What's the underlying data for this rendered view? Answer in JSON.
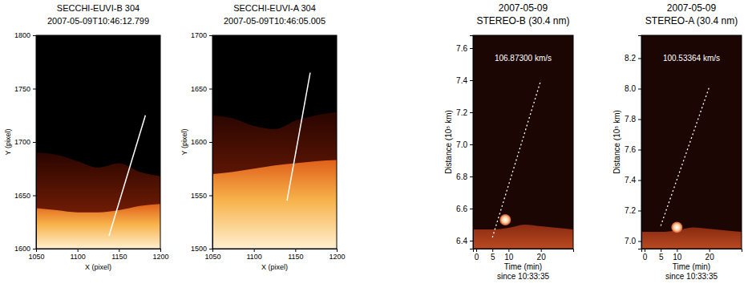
{
  "chart_data": [
    {
      "type": "image",
      "title": [
        "SECCHI-EUVI-B 304",
        "2007-05-09T10:46:12.799"
      ],
      "xlabel": "X (pixel)",
      "ylabel": "Y (pixel)",
      "xlim": [
        1050,
        1200
      ],
      "ylim": [
        1600,
        1800
      ],
      "xticks": [
        1050,
        1100,
        1150,
        1200
      ],
      "yticks": [
        1600,
        1650,
        1700,
        1750,
        1800
      ],
      "x": [
        1050,
        1075,
        1100,
        1125,
        1150,
        1175,
        1200
      ],
      "glow_edge": [
        1690,
        1688,
        1682,
        1676,
        1680,
        1672,
        1668
      ],
      "limb_edge": [
        1638,
        1636,
        1634,
        1634,
        1636,
        1640,
        1642
      ],
      "track_line": {
        "x": [
          1138,
          1182
        ],
        "y": [
          1612,
          1725
        ]
      }
    },
    {
      "type": "image",
      "title": [
        "SECCHI-EUVI-A 304",
        "2007-05-09T10:46:05.005"
      ],
      "xlabel": "X (pixel)",
      "ylabel": "Y (pixel)",
      "xlim": [
        1050,
        1200
      ],
      "ylim": [
        1500,
        1700
      ],
      "xticks": [
        1050,
        1100,
        1150,
        1200
      ],
      "yticks": [
        1500,
        1550,
        1600,
        1650,
        1700
      ],
      "x": [
        1050,
        1075,
        1100,
        1125,
        1150,
        1175,
        1200
      ],
      "glow_edge": [
        1625,
        1622,
        1615,
        1612,
        1620,
        1625,
        1628
      ],
      "limb_edge": [
        1570,
        1572,
        1575,
        1578,
        1580,
        1582,
        1583
      ],
      "track_line": {
        "x": [
          1140,
          1168
        ],
        "y": [
          1545,
          1665
        ]
      }
    },
    {
      "type": "line",
      "title": [
        "2007-05-09",
        "STEREO-B (30.4 nm)"
      ],
      "xlabel": [
        "Time (min)",
        "since 10:33:35"
      ],
      "ylabel": "Distance (10⁵ km)",
      "annotation": "106.87300 km/s",
      "xlim": [
        -1,
        30
      ],
      "ylim": [
        6.35,
        7.68
      ],
      "xticks": [
        0,
        5,
        10,
        20
      ],
      "yticks": [
        6.4,
        6.6,
        6.8,
        {
          "value": 7,
          "label": "7.0"
        },
        7.2,
        7.4,
        7.6
      ],
      "x": [
        -1,
        5,
        10,
        15,
        20,
        25,
        30
      ],
      "limb_edge": [
        6.47,
        6.47,
        6.48,
        6.5,
        6.49,
        6.48,
        6.47
      ],
      "fit_line": {
        "x": [
          5,
          20
        ],
        "y": [
          6.42,
          7.4
        ]
      },
      "bright_point": {
        "x": 9,
        "y": 6.53
      }
    },
    {
      "type": "line",
      "title": [
        "2007-05-09",
        "STEREO-A (30.4 nm)"
      ],
      "xlabel": [
        "Time (min)",
        "since 10:33:35"
      ],
      "ylabel": "Distance (10⁵ km)",
      "annotation": "100.53364 km/s",
      "xlim": [
        -1,
        30
      ],
      "ylim": [
        6.95,
        8.35
      ],
      "xticks": [
        0,
        5,
        10,
        20
      ],
      "yticks": [
        {
          "value": 7,
          "label": "7.0"
        },
        7.2,
        7.4,
        7.6,
        7.8,
        {
          "value": 8,
          "label": "8.0"
        },
        8.2
      ],
      "x": [
        -1,
        5,
        10,
        15,
        20,
        25,
        30
      ],
      "limb_edge": [
        7.06,
        7.06,
        7.07,
        7.09,
        7.08,
        7.07,
        7.06
      ],
      "fit_line": {
        "x": [
          5,
          20
        ],
        "y": [
          7.1,
          8.01
        ]
      },
      "bright_point": {
        "x": 10,
        "y": 7.09
      }
    }
  ]
}
